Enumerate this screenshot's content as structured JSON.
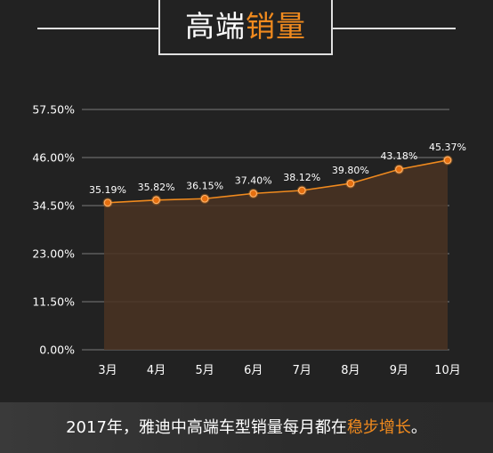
{
  "header": {
    "title_main": "高端",
    "title_accent": "销量"
  },
  "chart_data": {
    "type": "area",
    "categories": [
      "3月",
      "4月",
      "5月",
      "6月",
      "7月",
      "8月",
      "9月",
      "10月"
    ],
    "values": [
      35.19,
      35.82,
      36.15,
      37.4,
      38.12,
      39.8,
      43.18,
      45.37
    ],
    "data_labels": [
      "35.19%",
      "35.82%",
      "36.15%",
      "37.40%",
      "38.12%",
      "39.80%",
      "43.18%",
      "45.37%"
    ],
    "yticks": [
      0,
      11.5,
      23,
      34.5,
      46,
      57.5
    ],
    "ytick_labels": [
      "0.00%",
      "11.50%",
      "23.00%",
      "34.50%",
      "46.00%",
      "57.50%"
    ],
    "ylim": [
      0,
      57.5
    ],
    "grid": true,
    "colors": {
      "line": "#f08a1e",
      "fill": "#4a3322",
      "grid": "#6a6a6a"
    }
  },
  "footer": {
    "text_main": "2017年，雅迪中高端车型销量每月都在",
    "text_accent": "稳步增长",
    "text_end": "。"
  }
}
